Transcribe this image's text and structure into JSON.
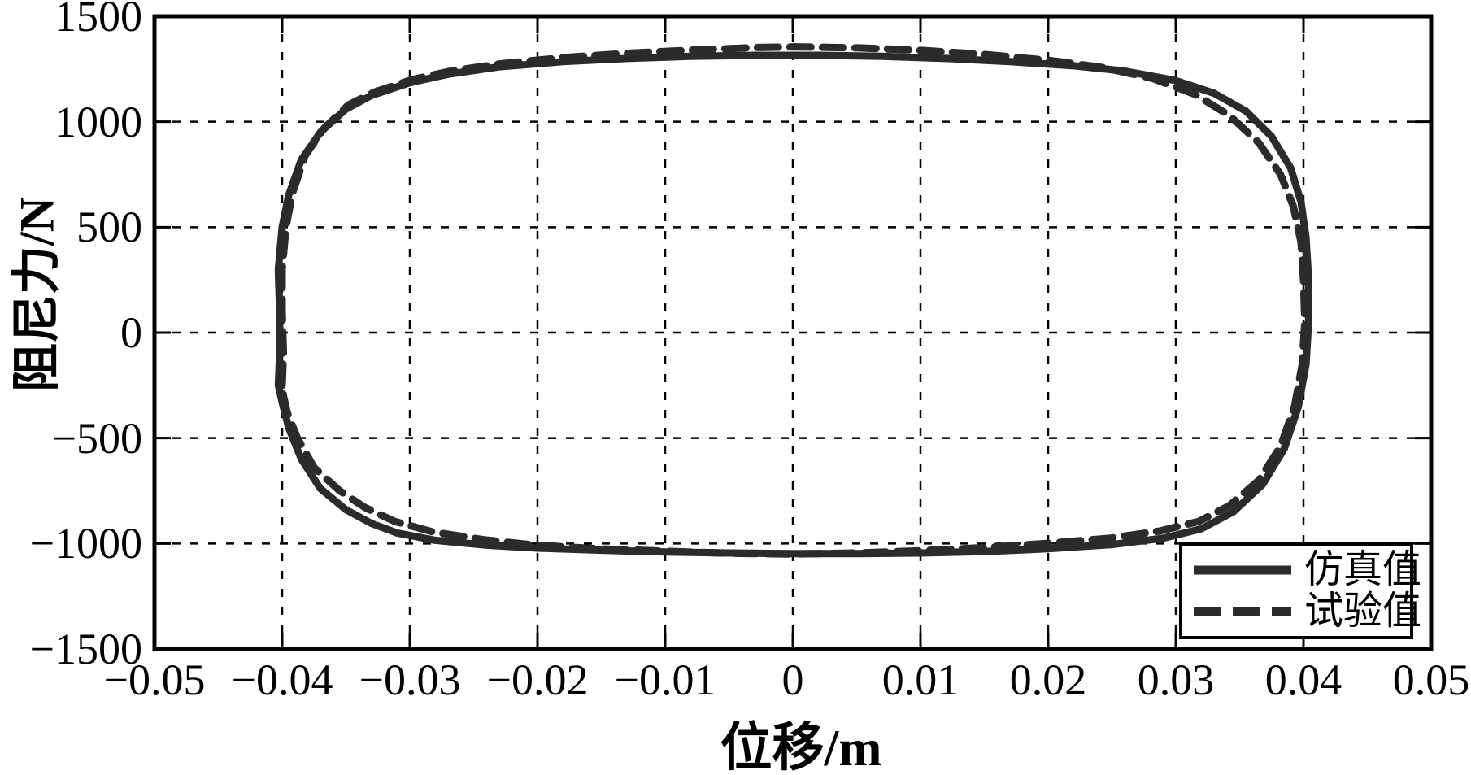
{
  "figure": {
    "background": "#ffffff",
    "axis_color": "#000000",
    "curve_color": "#2b2b2b"
  },
  "chart_data": {
    "type": "line",
    "title": "",
    "xlabel": "位移/m",
    "ylabel": "阻尼力/N",
    "xlim": [
      -0.05,
      0.05
    ],
    "ylim": [
      -1500,
      1500
    ],
    "grid": "dashed",
    "legend_position": "bottom-right",
    "xticks": {
      "values": [
        -0.05,
        -0.04,
        -0.03,
        -0.02,
        -0.01,
        0,
        0.01,
        0.02,
        0.03,
        0.04,
        0.05
      ],
      "labels": [
        "−0.05",
        "−0.04",
        "−0.03",
        "−0.02",
        "−0.01",
        "0",
        "0.01",
        "0.02",
        "0.03",
        "0.04",
        "0.05"
      ]
    },
    "yticks": {
      "values": [
        -1500,
        -1000,
        -500,
        0,
        500,
        1000,
        1500
      ],
      "labels": [
        "−1500",
        "−1000",
        "−500",
        "0",
        "500",
        "1000",
        "1500"
      ]
    },
    "series": [
      {
        "name": "仿真值",
        "style": "solid",
        "closed": true,
        "points": [
          [
            -0.0403,
            -250
          ],
          [
            -0.0402,
            -100
          ],
          [
            -0.0402,
            100
          ],
          [
            -0.0403,
            300
          ],
          [
            -0.04,
            500
          ],
          [
            -0.0395,
            650
          ],
          [
            -0.0385,
            820
          ],
          [
            -0.037,
            950
          ],
          [
            -0.035,
            1060
          ],
          [
            -0.033,
            1125
          ],
          [
            -0.03,
            1185
          ],
          [
            -0.027,
            1225
          ],
          [
            -0.023,
            1260
          ],
          [
            -0.018,
            1285
          ],
          [
            -0.013,
            1300
          ],
          [
            -0.008,
            1310
          ],
          [
            -0.003,
            1315
          ],
          [
            0.002,
            1315
          ],
          [
            0.007,
            1310
          ],
          [
            0.012,
            1300
          ],
          [
            0.017,
            1285
          ],
          [
            0.022,
            1265
          ],
          [
            0.026,
            1240
          ],
          [
            0.03,
            1195
          ],
          [
            0.033,
            1135
          ],
          [
            0.0355,
            1050
          ],
          [
            0.0375,
            930
          ],
          [
            0.039,
            780
          ],
          [
            0.0398,
            620
          ],
          [
            0.0402,
            450
          ],
          [
            0.0404,
            250
          ],
          [
            0.0404,
            50
          ],
          [
            0.0402,
            -150
          ],
          [
            0.0396,
            -350
          ],
          [
            0.0385,
            -550
          ],
          [
            0.0368,
            -720
          ],
          [
            0.0345,
            -850
          ],
          [
            0.032,
            -930
          ],
          [
            0.029,
            -975
          ],
          [
            0.025,
            -1005
          ],
          [
            0.02,
            -1025
          ],
          [
            0.015,
            -1038
          ],
          [
            0.01,
            -1045
          ],
          [
            0.005,
            -1048
          ],
          [
            0.0,
            -1048
          ],
          [
            -0.005,
            -1045
          ],
          [
            -0.01,
            -1040
          ],
          [
            -0.015,
            -1032
          ],
          [
            -0.02,
            -1022
          ],
          [
            -0.024,
            -1008
          ],
          [
            -0.028,
            -985
          ],
          [
            -0.031,
            -950
          ],
          [
            -0.033,
            -905
          ],
          [
            -0.035,
            -840
          ],
          [
            -0.037,
            -740
          ],
          [
            -0.0385,
            -600
          ],
          [
            -0.0395,
            -450
          ],
          [
            -0.04,
            -330
          ]
        ]
      },
      {
        "name": "试验值",
        "style": "dashed",
        "closed": true,
        "points": [
          [
            -0.04,
            -250
          ],
          [
            -0.0399,
            -100
          ],
          [
            -0.04,
            100
          ],
          [
            -0.04,
            300
          ],
          [
            -0.0397,
            500
          ],
          [
            -0.0392,
            660
          ],
          [
            -0.0382,
            840
          ],
          [
            -0.0367,
            970
          ],
          [
            -0.0348,
            1080
          ],
          [
            -0.0328,
            1140
          ],
          [
            -0.0298,
            1200
          ],
          [
            -0.0268,
            1240
          ],
          [
            -0.0228,
            1275
          ],
          [
            -0.0178,
            1305
          ],
          [
            -0.0128,
            1325
          ],
          [
            -0.0078,
            1340
          ],
          [
            -0.0028,
            1352
          ],
          [
            0.0002,
            1355
          ],
          [
            0.0052,
            1350
          ],
          [
            0.0102,
            1338
          ],
          [
            0.0152,
            1318
          ],
          [
            0.0202,
            1290
          ],
          [
            0.0242,
            1258
          ],
          [
            0.0282,
            1205
          ],
          [
            0.0315,
            1130
          ],
          [
            0.0342,
            1030
          ],
          [
            0.0365,
            900
          ],
          [
            0.0382,
            750
          ],
          [
            0.0392,
            600
          ],
          [
            0.0398,
            430
          ],
          [
            0.04,
            250
          ],
          [
            0.0401,
            50
          ],
          [
            0.0399,
            -150
          ],
          [
            0.0393,
            -350
          ],
          [
            0.0382,
            -540
          ],
          [
            0.0365,
            -700
          ],
          [
            0.0342,
            -820
          ],
          [
            0.0318,
            -895
          ],
          [
            0.0288,
            -940
          ],
          [
            0.0248,
            -975
          ],
          [
            0.0198,
            -1000
          ],
          [
            0.0148,
            -1020
          ],
          [
            0.0098,
            -1035
          ],
          [
            0.0048,
            -1045
          ],
          [
            -0.0002,
            -1050
          ],
          [
            -0.0052,
            -1046
          ],
          [
            -0.0102,
            -1036
          ],
          [
            -0.0152,
            -1025
          ],
          [
            -0.0202,
            -1008
          ],
          [
            -0.0242,
            -982
          ],
          [
            -0.0282,
            -945
          ],
          [
            -0.0312,
            -895
          ],
          [
            -0.0335,
            -830
          ],
          [
            -0.0355,
            -750
          ],
          [
            -0.0375,
            -640
          ],
          [
            -0.0388,
            -500
          ],
          [
            -0.0396,
            -380
          ],
          [
            -0.0399,
            -300
          ]
        ]
      }
    ]
  }
}
